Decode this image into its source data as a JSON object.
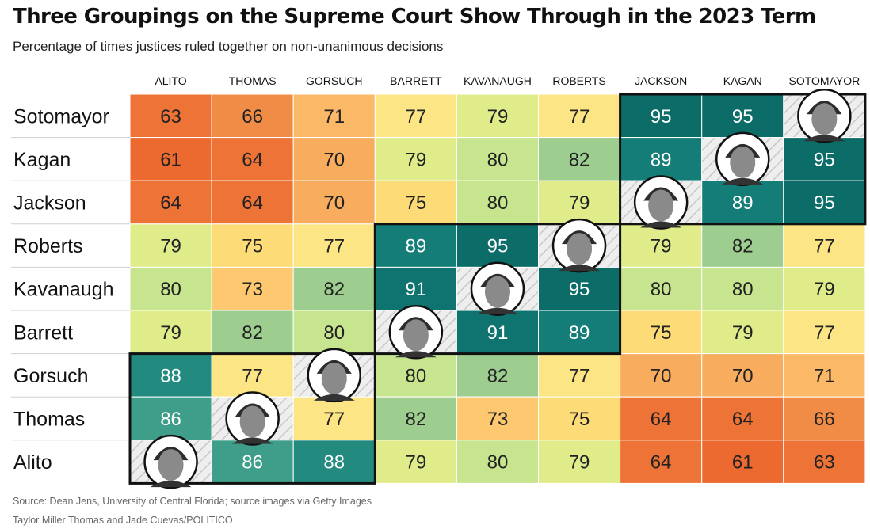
{
  "title": "Three Groupings on the Supreme Court Show Through in the 2023 Term",
  "subtitle": "Percentage of times justices ruled together on non-unanimous decisions",
  "source": "Source: Dean Jens, University of Central Florida; source images via Getty Images",
  "credit": "Taylor Miller Thomas and Jade Cuevas/POLITICO",
  "chart_data": {
    "type": "heatmap",
    "columns": [
      "ALITO",
      "THOMAS",
      "GORSUCH",
      "BARRETT",
      "KAVANAUGH",
      "ROBERTS",
      "JACKSON",
      "KAGAN",
      "SOTOMAYOR"
    ],
    "rows": [
      "Sotomayor",
      "Kagan",
      "Jackson",
      "Roberts",
      "Kavanaugh",
      "Barrett",
      "Gorsuch",
      "Thomas",
      "Alito"
    ],
    "values": [
      [
        63,
        66,
        71,
        77,
        79,
        77,
        95,
        95,
        null
      ],
      [
        61,
        64,
        70,
        79,
        80,
        82,
        89,
        null,
        95
      ],
      [
        64,
        64,
        70,
        75,
        80,
        79,
        null,
        89,
        95
      ],
      [
        79,
        75,
        77,
        89,
        95,
        null,
        79,
        82,
        77
      ],
      [
        80,
        73,
        82,
        91,
        null,
        95,
        80,
        80,
        79
      ],
      [
        79,
        82,
        80,
        null,
        91,
        89,
        75,
        79,
        77
      ],
      [
        88,
        77,
        null,
        80,
        82,
        77,
        70,
        70,
        71
      ],
      [
        86,
        null,
        77,
        82,
        73,
        75,
        64,
        64,
        66
      ],
      [
        null,
        86,
        88,
        79,
        80,
        79,
        64,
        61,
        63
      ]
    ],
    "groupings": [
      {
        "columns": [
          "JACKSON",
          "KAGAN",
          "SOTOMAYOR"
        ],
        "rows": [
          "Sotomayor",
          "Kagan",
          "Jackson"
        ]
      },
      {
        "columns": [
          "BARRETT",
          "KAVANAUGH",
          "ROBERTS"
        ],
        "rows": [
          "Roberts",
          "Kavanaugh",
          "Barrett"
        ]
      },
      {
        "columns": [
          "ALITO",
          "THOMAS",
          "GORSUCH"
        ],
        "rows": [
          "Gorsuch",
          "Thomas",
          "Alito"
        ]
      }
    ],
    "color_scale": [
      {
        "value": 61,
        "color": "#ec6a30"
      },
      {
        "value": 64,
        "color": "#ee7336"
      },
      {
        "value": 66,
        "color": "#f08c45"
      },
      {
        "value": 70,
        "color": "#f8ad5e"
      },
      {
        "value": 71,
        "color": "#fbb866"
      },
      {
        "value": 73,
        "color": "#fdc86f"
      },
      {
        "value": 75,
        "color": "#fddc78"
      },
      {
        "value": 77,
        "color": "#fbe585"
      },
      {
        "value": 79,
        "color": "#e0ec8a"
      },
      {
        "value": 80,
        "color": "#c7e58f"
      },
      {
        "value": 82,
        "color": "#9dce8f"
      },
      {
        "value": 86,
        "color": "#3e9e8a"
      },
      {
        "value": 88,
        "color": "#238a80"
      },
      {
        "value": 89,
        "color": "#157d78"
      },
      {
        "value": 91,
        "color": "#0f7470"
      },
      {
        "value": 95,
        "color": "#0b6c68"
      }
    ],
    "text_color_light": "#ffffff",
    "text_color_dark": "#222222",
    "diagonal": "justice-portrait"
  }
}
